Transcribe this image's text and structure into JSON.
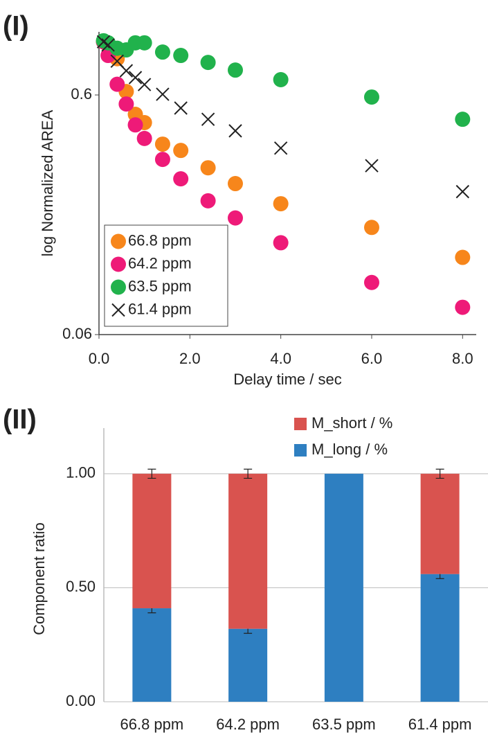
{
  "chart_data": [
    {
      "type": "scatter",
      "panel_label": "(I)",
      "x_label": "Delay time / sec",
      "y_label": "log Normalized AREA",
      "log_y": true,
      "xlim": [
        0,
        8.3
      ],
      "ylim": [
        0.06,
        1.1
      ],
      "xticks": [
        {
          "value": 0,
          "label": "0.0"
        },
        {
          "value": 2,
          "label": "2.0"
        },
        {
          "value": 4,
          "label": "4.0"
        },
        {
          "value": 6,
          "label": "6.0"
        },
        {
          "value": 8,
          "label": "8.0"
        }
      ],
      "yticks": [
        0.06,
        0.6
      ],
      "legend": "lower left",
      "x": [
        0.1,
        0.2,
        0.4,
        0.6,
        0.8,
        1.0,
        1.4,
        1.8,
        2.4,
        3.0,
        4.0,
        6.0,
        8.0
      ],
      "series": [
        {
          "name": "66.8 ppm",
          "color": "#f7861b",
          "marker": "circle",
          "values": [
            1.0,
            0.97,
            0.85,
            0.62,
            0.498,
            0.46,
            0.374,
            0.352,
            0.298,
            0.256,
            0.211,
            0.168,
            0.126
          ]
        },
        {
          "name": "64.2 ppm",
          "color": "#ee1a78",
          "marker": "circle",
          "values": [
            1.0,
            0.877,
            0.665,
            0.55,
            0.45,
            0.395,
            0.323,
            0.268,
            0.217,
            0.184,
            0.145,
            0.099,
            0.078
          ]
        },
        {
          "name": "63.5 ppm",
          "color": "#21b24c",
          "marker": "circle",
          "values": [
            1.01,
            0.99,
            0.94,
            0.925,
            0.99,
            0.99,
            0.906,
            0.877,
            0.82,
            0.762,
            0.695,
            0.588,
            0.475
          ]
        },
        {
          "name": "61.4 ppm",
          "color": "#222222",
          "marker": "cross",
          "values": [
            1.0,
            0.97,
            0.83,
            0.757,
            0.709,
            0.663,
            0.604,
            0.529,
            0.475,
            0.425,
            0.36,
            0.304,
            0.237
          ]
        }
      ]
    },
    {
      "type": "stacked_bar",
      "panel_label": "(II)",
      "y_label": "Component  ratio",
      "categories": [
        "66.8 ppm",
        "64.2 ppm",
        "63.5 ppm",
        "61.4 ppm"
      ],
      "ylim": [
        0,
        1.2
      ],
      "yticks": [
        {
          "value": 0,
          "label": "0.00"
        },
        {
          "value": 0.5,
          "label": "0.50"
        },
        {
          "value": 1,
          "label": "1.00"
        }
      ],
      "grid": true,
      "legend": "upper right",
      "series": [
        {
          "name": "M_long / %",
          "color": "#2e7fc1",
          "values": [
            0.41,
            0.32,
            1.0,
            0.56
          ],
          "errors": [
            0.02,
            0.02,
            0,
            0.02
          ]
        },
        {
          "name": "M_short / %",
          "color": "#d9534f",
          "values": [
            0.59,
            0.68,
            0,
            0.44
          ],
          "errors": [
            0.02,
            0.02,
            0,
            0.02
          ]
        }
      ]
    }
  ]
}
